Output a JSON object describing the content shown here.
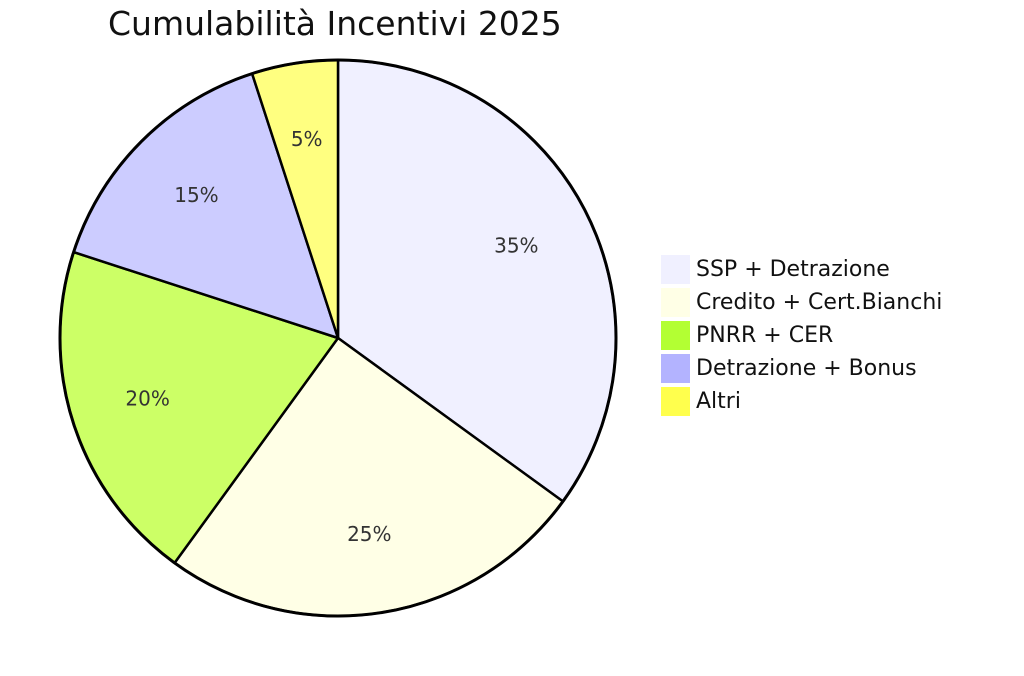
{
  "chart_data": {
    "type": "pie",
    "title": "Cumulabilità Incentivi 2025",
    "slices": [
      {
        "label": "SSP + Detrazione",
        "value": 35,
        "display": "35%",
        "color": "#f0f0ff"
      },
      {
        "label": "Credito + Cert.Bianchi",
        "value": 25,
        "display": "25%",
        "color": "#ffffe6"
      },
      {
        "label": "PNRR + CER",
        "value": 20,
        "display": "20%",
        "color": "#ccff66"
      },
      {
        "label": "Detrazione + Bonus",
        "value": 15,
        "display": "15%",
        "color": "#ccccff"
      },
      {
        "label": "Altri",
        "value": 5,
        "display": "5%",
        "color": "#ffff80"
      }
    ],
    "legend_colors": [
      "#f0f0ff",
      "#ffffe6",
      "#b3ff33",
      "#b3b3ff",
      "#ffff4d"
    ],
    "legend_position": "right",
    "start_angle": "top",
    "direction": "clockwise"
  }
}
